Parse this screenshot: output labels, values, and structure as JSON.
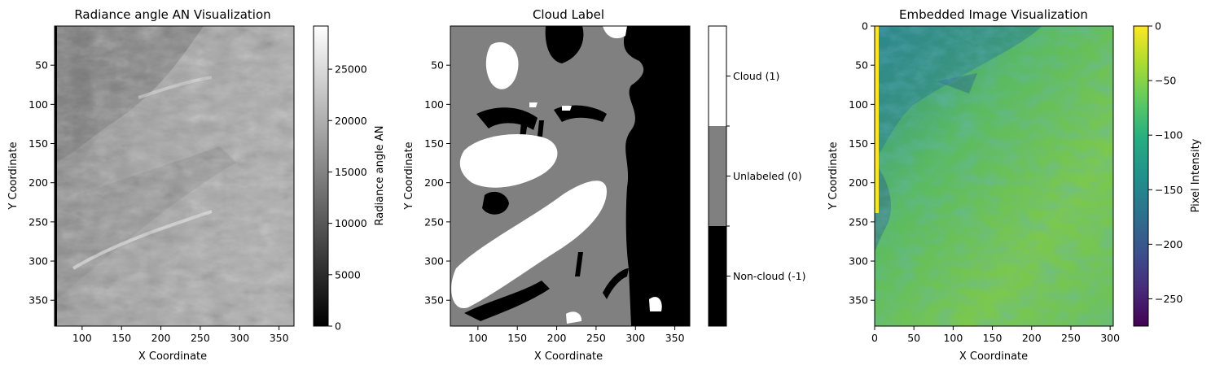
{
  "chart_data": [
    {
      "type": "heatmap",
      "title": "Radiance angle AN Visualization",
      "xlabel": "X Coordinate",
      "ylabel": "Y Coordinate",
      "colormap": "gray",
      "xlim": [
        65,
        369
      ],
      "ylim": [
        383,
        0
      ],
      "x_ticks": [
        100,
        150,
        200,
        250,
        300,
        350
      ],
      "y_ticks": [
        50,
        100,
        150,
        200,
        250,
        300,
        350
      ],
      "colorbar": {
        "label": "Radiance angle AN",
        "range": [
          0,
          29200
        ],
        "ticks": [
          0,
          5000,
          10000,
          15000,
          20000,
          25000
        ]
      }
    },
    {
      "type": "heatmap",
      "title": "Cloud Label",
      "xlabel": "X Coordinate",
      "ylabel": "Y Coordinate",
      "colormap": "discrete-gray",
      "xlim": [
        65,
        369
      ],
      "ylim": [
        383,
        0
      ],
      "x_ticks": [
        100,
        150,
        200,
        250,
        300,
        350
      ],
      "y_ticks": [
        50,
        100,
        150,
        200,
        250,
        300,
        350
      ],
      "colorbar": {
        "categories": [
          {
            "label": "Non-cloud (-1)",
            "value": -1,
            "color": "#000000"
          },
          {
            "label": "Unlabeled (0)",
            "value": 0,
            "color": "#808080"
          },
          {
            "label": "Cloud (1)",
            "value": 1,
            "color": "#ffffff"
          }
        ]
      }
    },
    {
      "type": "heatmap",
      "title": "Embedded Image Visualization",
      "xlabel": "X Coordinate",
      "ylabel": "Y Coordinate",
      "colormap": "viridis",
      "xlim": [
        0,
        304
      ],
      "ylim": [
        383,
        0
      ],
      "x_ticks": [
        0,
        50,
        100,
        150,
        200,
        250,
        300
      ],
      "y_ticks": [
        0,
        50,
        100,
        150,
        200,
        250,
        300,
        350
      ],
      "colorbar": {
        "label": "Pixel Intensity",
        "range": [
          -275,
          0
        ],
        "ticks": [
          0,
          -50,
          -100,
          -150,
          -200,
          -250
        ]
      }
    }
  ]
}
